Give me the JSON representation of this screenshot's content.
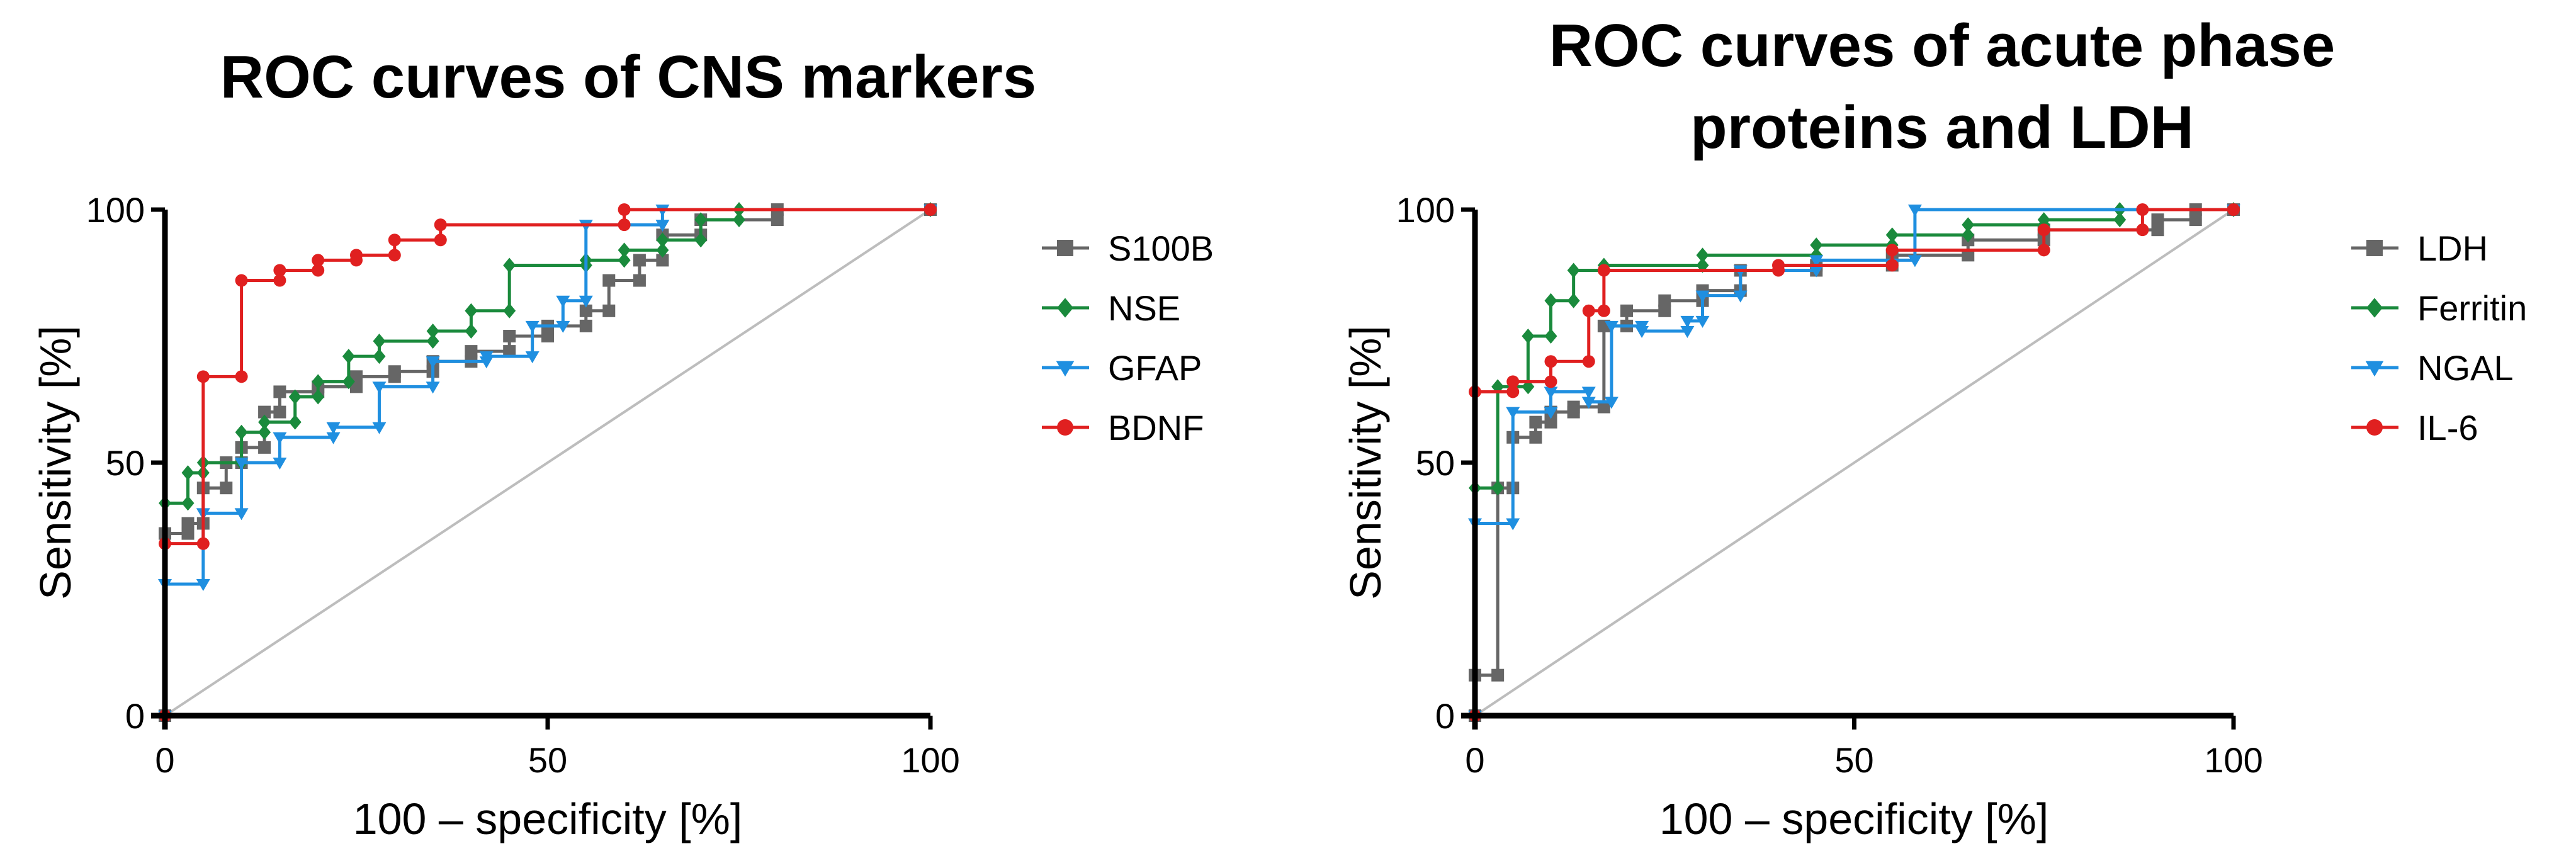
{
  "chart_data": [
    {
      "type": "line",
      "title_lines": [
        "ROC curves of CNS markers"
      ],
      "xlabel": "100 – specificity [%]",
      "ylabel": "Sensitivity [%]",
      "xlim": [
        0,
        100
      ],
      "ylim": [
        0,
        100
      ],
      "x_ticks": [
        "0",
        "50",
        "100"
      ],
      "y_ticks": [
        "0",
        "50",
        "100"
      ],
      "reference_line": [
        [
          0,
          0
        ],
        [
          100,
          100
        ]
      ],
      "legend_position": "right",
      "series": [
        {
          "name": "S100B",
          "color": "#666666",
          "marker": "square",
          "points": [
            [
              0,
              0
            ],
            [
              0,
              36
            ],
            [
              3,
              36
            ],
            [
              3,
              38
            ],
            [
              5,
              38
            ],
            [
              5,
              45
            ],
            [
              8,
              45
            ],
            [
              8,
              50
            ],
            [
              10,
              50
            ],
            [
              10,
              53
            ],
            [
              13,
              53
            ],
            [
              13,
              60
            ],
            [
              15,
              60
            ],
            [
              15,
              64
            ],
            [
              20,
              64
            ],
            [
              20,
              65
            ],
            [
              25,
              65
            ],
            [
              25,
              67
            ],
            [
              30,
              67
            ],
            [
              30,
              68
            ],
            [
              35,
              68
            ],
            [
              35,
              70
            ],
            [
              40,
              70
            ],
            [
              40,
              72
            ],
            [
              45,
              72
            ],
            [
              45,
              75
            ],
            [
              50,
              75
            ],
            [
              50,
              77
            ],
            [
              55,
              77
            ],
            [
              55,
              80
            ],
            [
              58,
              80
            ],
            [
              58,
              86
            ],
            [
              62,
              86
            ],
            [
              62,
              90
            ],
            [
              65,
              90
            ],
            [
              65,
              95
            ],
            [
              70,
              95
            ],
            [
              70,
              98
            ],
            [
              80,
              98
            ],
            [
              80,
              100
            ],
            [
              100,
              100
            ]
          ]
        },
        {
          "name": "NSE",
          "color": "#1a8a3c",
          "marker": "diamond",
          "points": [
            [
              0,
              0
            ],
            [
              0,
              42
            ],
            [
              3,
              42
            ],
            [
              3,
              48
            ],
            [
              5,
              48
            ],
            [
              5,
              50
            ],
            [
              10,
              50
            ],
            [
              10,
              56
            ],
            [
              13,
              56
            ],
            [
              13,
              58
            ],
            [
              17,
              58
            ],
            [
              17,
              63
            ],
            [
              20,
              63
            ],
            [
              20,
              66
            ],
            [
              24,
              66
            ],
            [
              24,
              71
            ],
            [
              28,
              71
            ],
            [
              28,
              74
            ],
            [
              35,
              74
            ],
            [
              35,
              76
            ],
            [
              40,
              76
            ],
            [
              40,
              80
            ],
            [
              45,
              80
            ],
            [
              45,
              89
            ],
            [
              55,
              89
            ],
            [
              55,
              90
            ],
            [
              60,
              90
            ],
            [
              60,
              92
            ],
            [
              65,
              92
            ],
            [
              65,
              94
            ],
            [
              70,
              94
            ],
            [
              70,
              98
            ],
            [
              75,
              98
            ],
            [
              75,
              100
            ],
            [
              100,
              100
            ]
          ]
        },
        {
          "name": "GFAP",
          "color": "#1f8fe0",
          "marker": "triangle-down",
          "points": [
            [
              0,
              0
            ],
            [
              0,
              26
            ],
            [
              5,
              26
            ],
            [
              5,
              40
            ],
            [
              10,
              40
            ],
            [
              10,
              50
            ],
            [
              15,
              50
            ],
            [
              15,
              55
            ],
            [
              22,
              55
            ],
            [
              22,
              57
            ],
            [
              28,
              57
            ],
            [
              28,
              65
            ],
            [
              35,
              65
            ],
            [
              35,
              70
            ],
            [
              42,
              70
            ],
            [
              42,
              71
            ],
            [
              48,
              71
            ],
            [
              48,
              77
            ],
            [
              52,
              77
            ],
            [
              52,
              82
            ],
            [
              55,
              82
            ],
            [
              55,
              97
            ],
            [
              65,
              97
            ],
            [
              65,
              100
            ],
            [
              100,
              100
            ]
          ]
        },
        {
          "name": "BDNF",
          "color": "#e02020",
          "marker": "circle",
          "points": [
            [
              0,
              0
            ],
            [
              0,
              34
            ],
            [
              5,
              34
            ],
            [
              5,
              67
            ],
            [
              10,
              67
            ],
            [
              10,
              86
            ],
            [
              15,
              86
            ],
            [
              15,
              88
            ],
            [
              20,
              88
            ],
            [
              20,
              90
            ],
            [
              25,
              90
            ],
            [
              25,
              91
            ],
            [
              30,
              91
            ],
            [
              30,
              94
            ],
            [
              36,
              94
            ],
            [
              36,
              97
            ],
            [
              60,
              97
            ],
            [
              60,
              100
            ],
            [
              100,
              100
            ]
          ]
        }
      ]
    },
    {
      "type": "line",
      "title_lines": [
        "ROC curves of acute phase",
        "proteins and LDH"
      ],
      "xlabel": "100 – specificity [%]",
      "ylabel": "Sensitivity [%]",
      "xlim": [
        0,
        100
      ],
      "ylim": [
        0,
        100
      ],
      "x_ticks": [
        "0",
        "50",
        "100"
      ],
      "y_ticks": [
        "0",
        "50",
        "100"
      ],
      "reference_line": [
        [
          0,
          0
        ],
        [
          100,
          100
        ]
      ],
      "legend_position": "right",
      "series": [
        {
          "name": "LDH",
          "color": "#666666",
          "marker": "square",
          "points": [
            [
              0,
              0
            ],
            [
              0,
              8
            ],
            [
              3,
              8
            ],
            [
              3,
              45
            ],
            [
              5,
              45
            ],
            [
              5,
              55
            ],
            [
              8,
              55
            ],
            [
              8,
              58
            ],
            [
              10,
              58
            ],
            [
              10,
              60
            ],
            [
              13,
              60
            ],
            [
              13,
              61
            ],
            [
              17,
              61
            ],
            [
              17,
              77
            ],
            [
              20,
              77
            ],
            [
              20,
              80
            ],
            [
              25,
              80
            ],
            [
              25,
              82
            ],
            [
              30,
              82
            ],
            [
              30,
              84
            ],
            [
              35,
              84
            ],
            [
              35,
              88
            ],
            [
              45,
              88
            ],
            [
              45,
              89
            ],
            [
              55,
              89
            ],
            [
              55,
              91
            ],
            [
              65,
              91
            ],
            [
              65,
              94
            ],
            [
              75,
              94
            ],
            [
              75,
              96
            ],
            [
              90,
              96
            ],
            [
              90,
              98
            ],
            [
              95,
              98
            ],
            [
              95,
              100
            ],
            [
              100,
              100
            ]
          ]
        },
        {
          "name": "Ferritin",
          "color": "#1a8a3c",
          "marker": "diamond",
          "points": [
            [
              0,
              0
            ],
            [
              0,
              45
            ],
            [
              3,
              45
            ],
            [
              3,
              65
            ],
            [
              7,
              65
            ],
            [
              7,
              75
            ],
            [
              10,
              75
            ],
            [
              10,
              82
            ],
            [
              13,
              82
            ],
            [
              13,
              88
            ],
            [
              17,
              88
            ],
            [
              17,
              89
            ],
            [
              30,
              89
            ],
            [
              30,
              91
            ],
            [
              45,
              91
            ],
            [
              45,
              93
            ],
            [
              55,
              93
            ],
            [
              55,
              95
            ],
            [
              65,
              95
            ],
            [
              65,
              97
            ],
            [
              75,
              97
            ],
            [
              75,
              98
            ],
            [
              85,
              98
            ],
            [
              85,
              100
            ],
            [
              100,
              100
            ]
          ]
        },
        {
          "name": "NGAL",
          "color": "#1f8fe0",
          "marker": "triangle-down",
          "points": [
            [
              0,
              0
            ],
            [
              0,
              38
            ],
            [
              5,
              38
            ],
            [
              5,
              60
            ],
            [
              10,
              60
            ],
            [
              10,
              64
            ],
            [
              15,
              64
            ],
            [
              15,
              62
            ],
            [
              18,
              62
            ],
            [
              18,
              77
            ],
            [
              22,
              77
            ],
            [
              22,
              76
            ],
            [
              28,
              76
            ],
            [
              28,
              78
            ],
            [
              30,
              78
            ],
            [
              30,
              83
            ],
            [
              35,
              83
            ],
            [
              35,
              88
            ],
            [
              45,
              88
            ],
            [
              45,
              90
            ],
            [
              58,
              90
            ],
            [
              58,
              100
            ],
            [
              100,
              100
            ]
          ]
        },
        {
          "name": "IL-6",
          "color": "#e02020",
          "marker": "circle",
          "points": [
            [
              0,
              0
            ],
            [
              0,
              64
            ],
            [
              5,
              64
            ],
            [
              5,
              66
            ],
            [
              10,
              66
            ],
            [
              10,
              70
            ],
            [
              15,
              70
            ],
            [
              15,
              80
            ],
            [
              17,
              80
            ],
            [
              17,
              88
            ],
            [
              40,
              88
            ],
            [
              40,
              89
            ],
            [
              55,
              89
            ],
            [
              55,
              92
            ],
            [
              75,
              92
            ],
            [
              75,
              96
            ],
            [
              88,
              96
            ],
            [
              88,
              100
            ],
            [
              100,
              100
            ]
          ]
        }
      ]
    }
  ]
}
